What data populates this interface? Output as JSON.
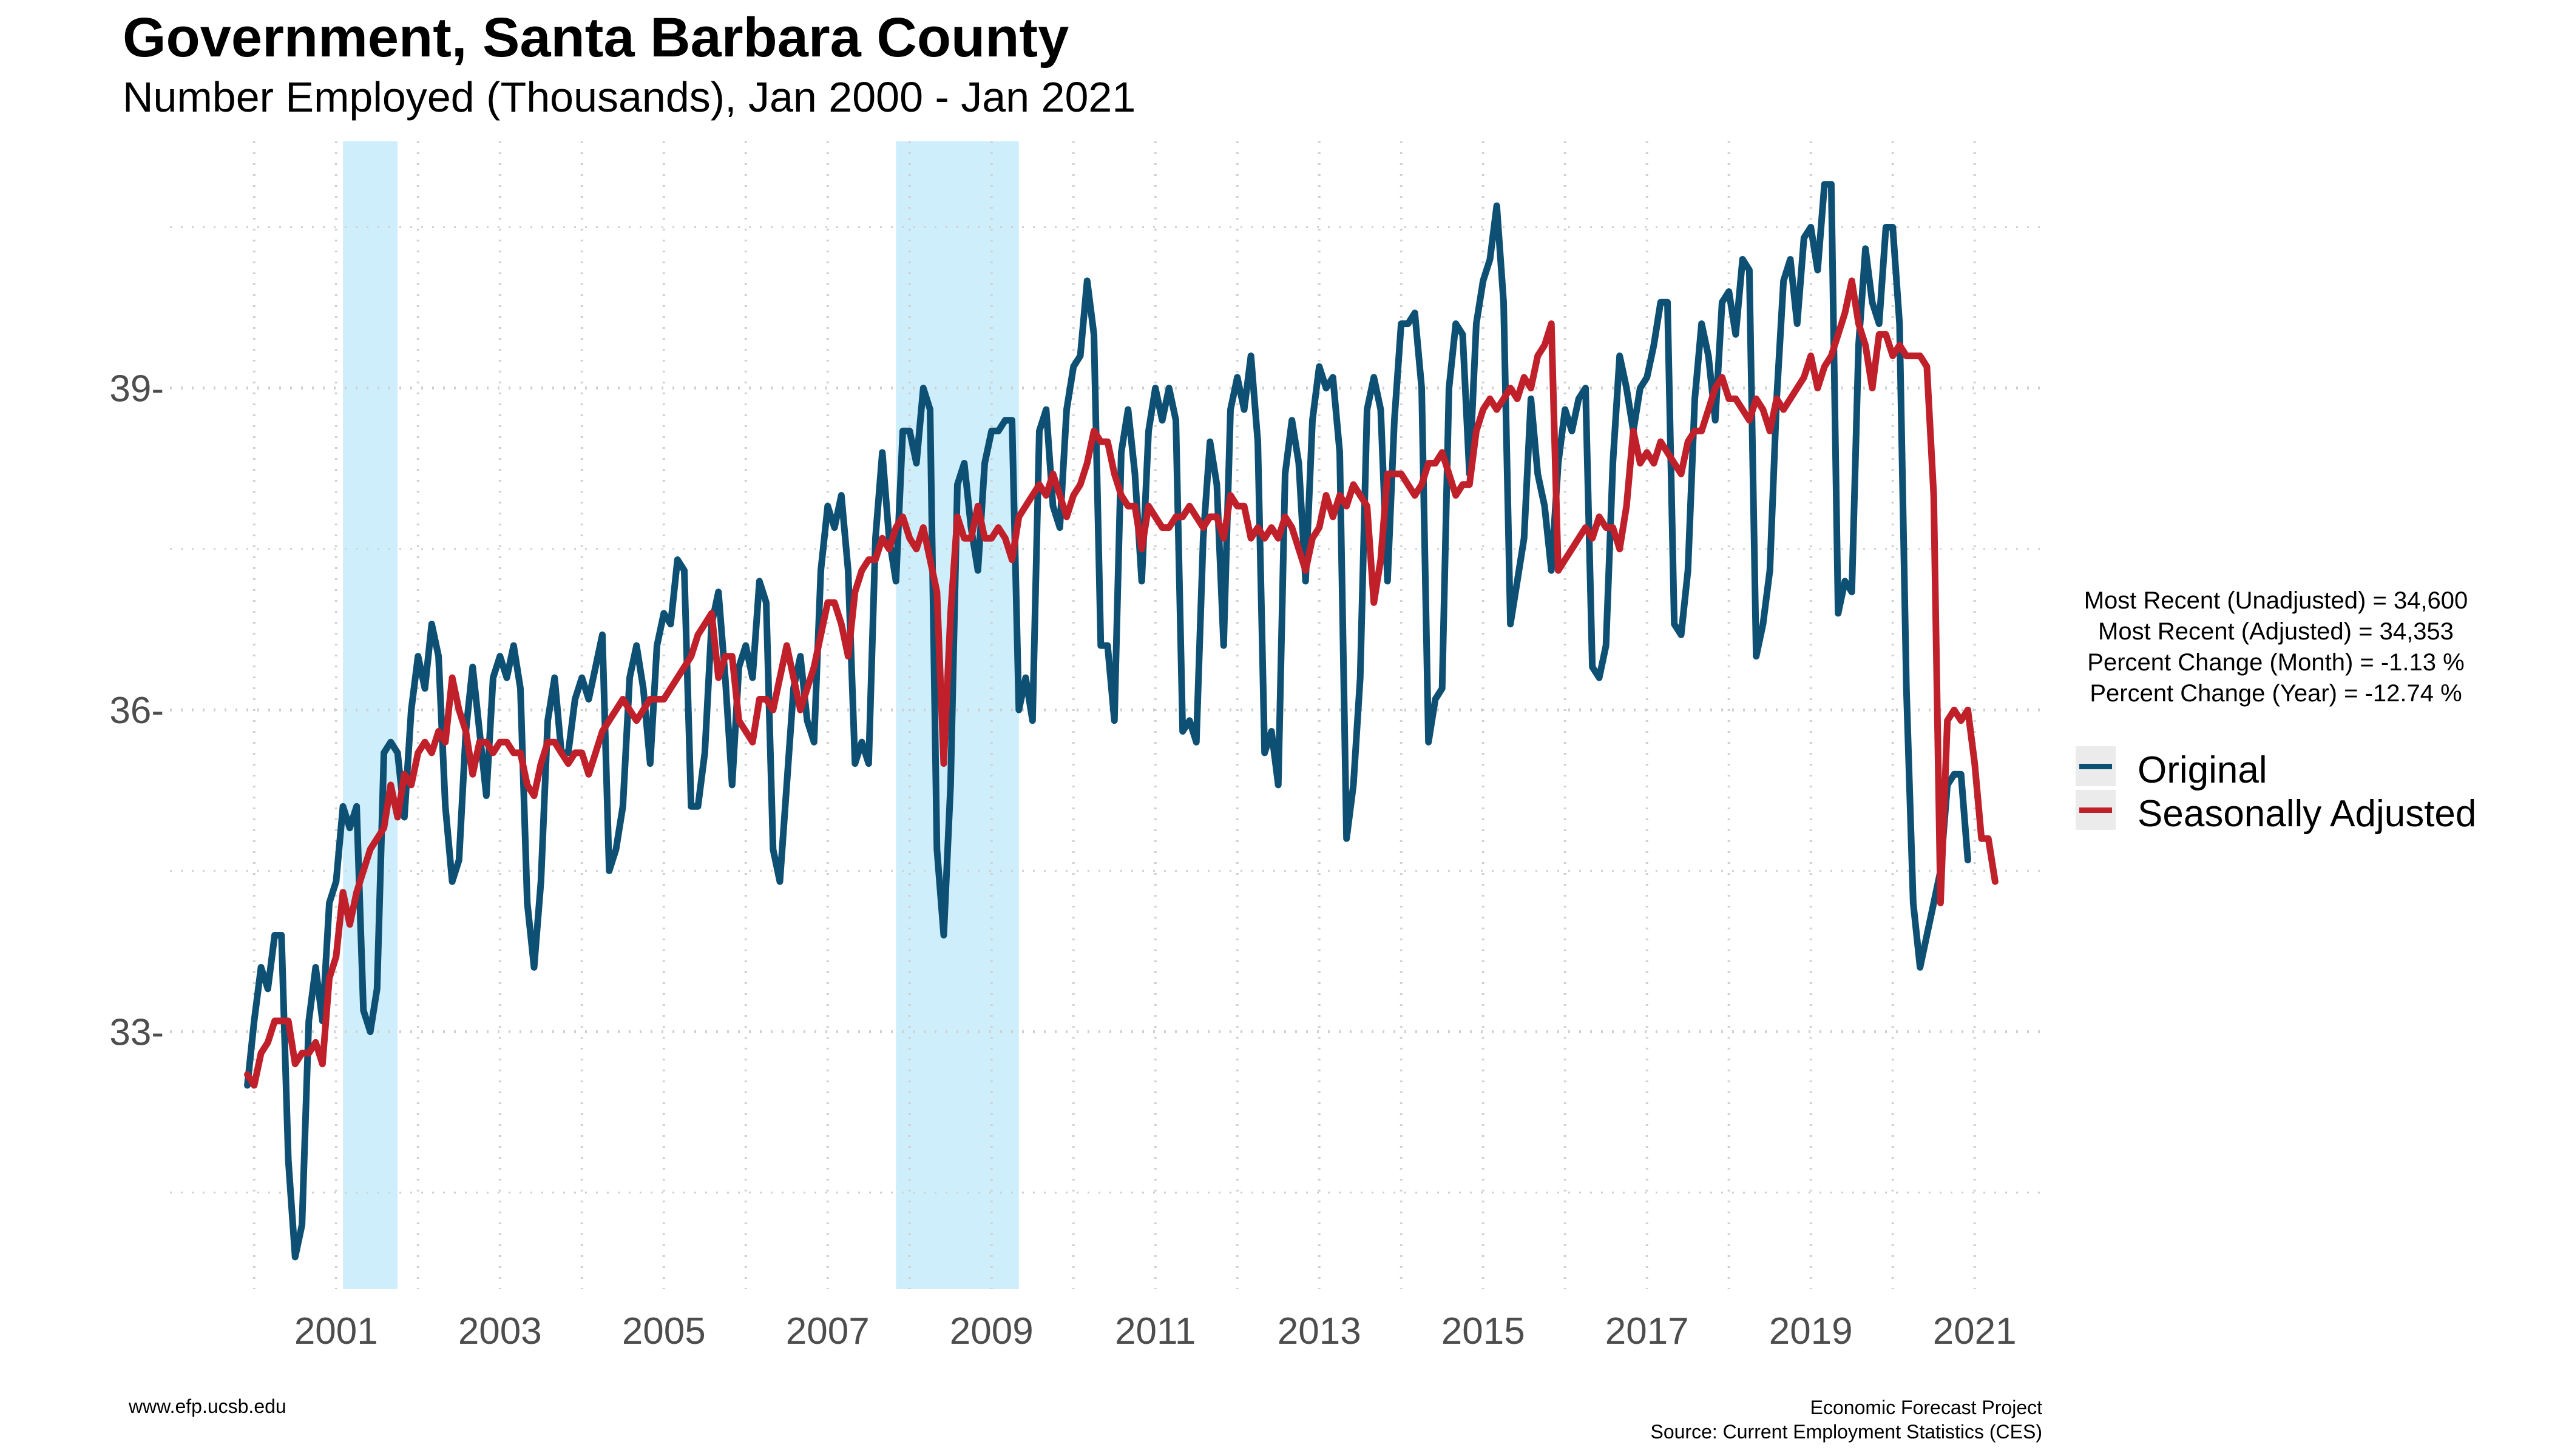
{
  "chart_data": {
    "type": "line",
    "title": "Government, Santa Barbara County",
    "subtitle": "Number Employed (Thousands), Jan 2000 - Jan 2021",
    "xlabel": "",
    "ylabel": "",
    "x_range": [
      "2000-01",
      "2021-01"
    ],
    "x_tick_labels": [
      "2001",
      "2003",
      "2005",
      "2007",
      "2009",
      "2011",
      "2013",
      "2015",
      "2017",
      "2019",
      "2021"
    ],
    "y_ticks": [
      33,
      36,
      39
    ],
    "y_tick_labels": [
      "33-",
      "36-",
      "39-"
    ],
    "ylim": [
      30.6,
      41.3
    ],
    "grid": true,
    "legend_position": "right",
    "recession_bands": [
      {
        "start": "2001-03",
        "end": "2001-11"
      },
      {
        "start": "2007-12",
        "end": "2009-06"
      }
    ],
    "series": [
      {
        "name": "Original",
        "color": "#0d5073",
        "values": [
          32.5,
          33.1,
          33.6,
          33.4,
          33.9,
          33.9,
          31.8,
          30.9,
          31.2,
          33.1,
          33.6,
          33.1,
          34.2,
          34.4,
          35.1,
          34.9,
          35.1,
          33.2,
          33.0,
          33.4,
          35.6,
          35.7,
          35.6,
          35.0,
          36.0,
          36.5,
          36.2,
          36.8,
          36.5,
          35.1,
          34.4,
          34.6,
          35.8,
          36.4,
          35.8,
          35.2,
          36.3,
          36.5,
          36.3,
          36.6,
          36.2,
          34.2,
          33.6,
          34.4,
          35.9,
          36.3,
          35.6,
          35.6,
          36.1,
          36.3,
          36.1,
          36.4,
          36.7,
          34.5,
          34.7,
          35.1,
          36.3,
          36.6,
          36.2,
          35.5,
          36.6,
          36.9,
          36.8,
          37.4,
          37.3,
          35.1,
          35.1,
          35.6,
          36.8,
          37.1,
          36.3,
          35.3,
          36.4,
          36.6,
          36.3,
          37.2,
          37.0,
          34.7,
          34.4,
          35.3,
          36.2,
          36.5,
          35.9,
          35.7,
          37.3,
          37.9,
          37.7,
          38.0,
          37.3,
          35.5,
          35.7,
          35.5,
          37.6,
          38.4,
          37.6,
          37.2,
          38.6,
          38.6,
          38.3,
          39.0,
          38.8,
          34.7,
          33.9,
          35.3,
          38.1,
          38.3,
          37.7,
          37.3,
          38.3,
          38.6,
          38.6,
          38.7,
          38.7,
          36.0,
          36.3,
          35.9,
          38.6,
          38.8,
          37.9,
          37.7,
          38.8,
          39.2,
          39.3,
          40.0,
          39.5,
          36.6,
          36.6,
          35.9,
          38.4,
          38.8,
          38.2,
          37.2,
          38.6,
          39.0,
          38.7,
          39.0,
          38.7,
          35.8,
          35.9,
          35.7,
          37.6,
          38.5,
          38.1,
          36.6,
          38.8,
          39.1,
          38.8,
          39.3,
          38.5,
          35.6,
          35.8,
          35.3,
          38.2,
          38.7,
          38.3,
          37.2,
          38.7,
          39.2,
          39.0,
          39.1,
          38.4,
          34.8,
          35.3,
          36.3,
          38.8,
          39.1,
          38.8,
          37.2,
          38.7,
          39.6,
          39.6,
          39.7,
          39.0,
          35.7,
          36.1,
          36.2,
          39.0,
          39.6,
          39.5,
          38.2,
          39.6,
          40.0,
          40.2,
          40.7,
          39.8,
          36.8,
          37.2,
          37.6,
          38.9,
          38.2,
          37.9,
          37.3,
          38.3,
          38.8,
          38.6,
          38.9,
          39.0,
          36.4,
          36.3,
          36.6,
          38.3,
          39.3,
          39.0,
          38.6,
          39.0,
          39.1,
          39.4,
          39.8,
          39.8,
          36.8,
          36.7,
          37.3,
          38.9,
          39.6,
          39.3,
          38.7,
          39.8,
          39.9,
          39.5,
          40.2,
          40.1,
          36.5,
          36.8,
          37.3,
          38.9,
          40.0,
          40.2,
          39.6,
          40.4,
          40.5,
          40.1,
          40.9,
          40.9,
          36.9,
          37.2,
          37.1,
          39.4,
          40.3,
          39.8,
          39.6,
          40.5,
          40.5,
          39.6,
          36.2,
          34.2,
          33.6,
          33.9,
          34.2,
          34.5,
          35.3,
          35.4,
          35.4,
          34.6
        ]
      },
      {
        "name": "Seasonally Adjusted",
        "color": "#c0202a",
        "values": [
          32.6,
          32.5,
          32.8,
          32.9,
          33.1,
          33.1,
          33.1,
          32.7,
          32.8,
          32.8,
          32.9,
          32.7,
          33.5,
          33.7,
          34.3,
          34.0,
          34.3,
          34.5,
          34.7,
          34.8,
          34.9,
          35.3,
          35.0,
          35.4,
          35.3,
          35.6,
          35.7,
          35.6,
          35.8,
          35.7,
          36.3,
          36.0,
          35.8,
          35.4,
          35.7,
          35.7,
          35.6,
          35.7,
          35.7,
          35.6,
          35.6,
          35.3,
          35.2,
          35.5,
          35.7,
          35.7,
          35.6,
          35.5,
          35.6,
          35.6,
          35.4,
          35.6,
          35.8,
          35.9,
          36.0,
          36.1,
          36.0,
          35.9,
          36.0,
          36.1,
          36.1,
          36.1,
          36.2,
          36.3,
          36.4,
          36.5,
          36.7,
          36.8,
          36.9,
          36.3,
          36.5,
          36.5,
          35.9,
          35.8,
          35.7,
          36.1,
          36.1,
          36.0,
          36.3,
          36.6,
          36.3,
          36.0,
          36.2,
          36.4,
          36.7,
          37.0,
          37.0,
          36.8,
          36.5,
          37.1,
          37.3,
          37.4,
          37.4,
          37.6,
          37.5,
          37.7,
          37.8,
          37.6,
          37.5,
          37.7,
          37.4,
          37.1,
          35.5,
          36.9,
          37.8,
          37.6,
          37.6,
          37.9,
          37.6,
          37.6,
          37.7,
          37.6,
          37.4,
          37.8,
          37.9,
          38.0,
          38.1,
          38.0,
          38.2,
          38.0,
          37.8,
          38.0,
          38.1,
          38.3,
          38.6,
          38.5,
          38.5,
          38.2,
          38.0,
          37.9,
          37.9,
          37.5,
          37.9,
          37.8,
          37.7,
          37.7,
          37.8,
          37.8,
          37.9,
          37.8,
          37.7,
          37.8,
          37.8,
          37.6,
          38.0,
          37.9,
          37.9,
          37.6,
          37.7,
          37.6,
          37.7,
          37.6,
          37.8,
          37.7,
          37.5,
          37.3,
          37.6,
          37.7,
          38.0,
          37.8,
          38.0,
          37.9,
          38.1,
          38.0,
          37.9,
          37.0,
          37.4,
          38.2,
          38.2,
          38.2,
          38.1,
          38.0,
          38.1,
          38.3,
          38.3,
          38.4,
          38.2,
          38.0,
          38.1,
          38.1,
          38.6,
          38.8,
          38.9,
          38.8,
          38.9,
          39.0,
          38.9,
          39.1,
          39.0,
          39.3,
          39.4,
          39.6,
          37.3,
          37.4,
          37.5,
          37.6,
          37.7,
          37.6,
          37.8,
          37.7,
          37.7,
          37.5,
          37.9,
          38.6,
          38.3,
          38.4,
          38.3,
          38.5,
          38.4,
          38.3,
          38.2,
          38.5,
          38.6,
          38.6,
          38.8,
          39.0,
          39.1,
          38.9,
          38.9,
          38.8,
          38.7,
          38.9,
          38.8,
          38.6,
          38.9,
          38.8,
          38.9,
          39.0,
          39.1,
          39.3,
          39.0,
          39.2,
          39.3,
          39.5,
          39.7,
          40.0,
          39.6,
          39.4,
          39.0,
          39.5,
          39.5,
          39.3,
          39.4,
          39.3,
          39.3,
          39.3,
          39.2,
          38.0,
          34.2,
          35.9,
          36.0,
          35.9,
          36.0,
          35.5,
          34.8,
          34.8,
          34.4
        ]
      }
    ]
  },
  "stats": {
    "line1": "Most Recent (Unadjusted) = 34,600",
    "line2": "Most Recent (Adjusted) = 34,353",
    "line3": "Percent Change (Month) = -1.13 %",
    "line4": "Percent Change (Year) = -12.74 %"
  },
  "footer": {
    "website": "www.efp.ucsb.edu",
    "project": "Economic Forecast Project",
    "source": "Source: Current Employment Statistics (CES)"
  },
  "colors": {
    "recession_band": "#cfeefc",
    "grid": "#d0d0d0",
    "axis_text": "#4d4d4d",
    "legend_key_bg": "#ebebeb"
  }
}
